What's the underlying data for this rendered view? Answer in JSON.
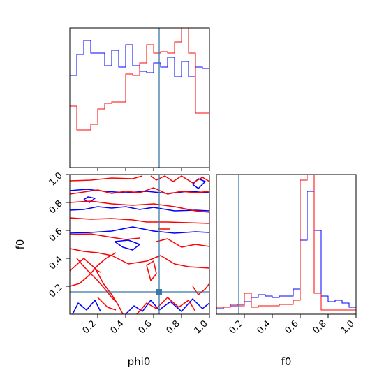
{
  "chart_data": {
    "type": "corner",
    "colors": {
      "series_a": "#0000ff",
      "series_b": "#ff0000",
      "truth": "#3a78a9",
      "axes": "#000000"
    },
    "truths": {
      "phi0": 0.64,
      "f0": 0.16
    },
    "ticks": {
      "phi0": {
        "values": [
          0.2,
          0.4,
          0.6,
          0.8,
          1.0
        ],
        "labels": [
          "0.2",
          "0.4",
          "0.6",
          "0.8",
          "1.0"
        ]
      },
      "f0": {
        "values": [
          0.2,
          0.4,
          0.6,
          0.8,
          1.0
        ],
        "labels": [
          "0.2",
          "0.4",
          "0.6",
          "0.8",
          "1.0"
        ]
      }
    },
    "axis_labels": {
      "x_left": "phi0",
      "x_right": "f0",
      "y_left": "f0"
    },
    "ranges": {
      "phi0": [
        0,
        1
      ],
      "f0": [
        0,
        1
      ]
    },
    "hist_phi0": {
      "bin_edges": [
        0,
        0.05,
        0.1,
        0.15,
        0.2,
        0.25,
        0.3,
        0.35,
        0.4,
        0.45,
        0.5,
        0.55,
        0.6,
        0.65,
        0.7,
        0.75,
        0.8,
        0.85,
        0.9,
        0.95,
        1.0
      ],
      "series": [
        {
          "color": "blue",
          "values": [
            0.66,
            0.81,
            0.91,
            0.82,
            0.82,
            0.73,
            0.84,
            0.72,
            0.88,
            0.73,
            0.69,
            0.68,
            0.75,
            0.72,
            0.79,
            0.65,
            0.76,
            0.65,
            0.72,
            0.71
          ]
        },
        {
          "color": "red",
          "values": [
            0.44,
            0.27,
            0.27,
            0.31,
            0.42,
            0.46,
            0.47,
            0.47,
            0.67,
            0.66,
            0.75,
            0.88,
            0.82,
            0.83,
            0.82,
            0.9,
            1.02,
            0.82,
            0.39,
            0.39
          ]
        }
      ]
    },
    "hist_f0": {
      "bin_edges": [
        0,
        0.05,
        0.1,
        0.15,
        0.2,
        0.25,
        0.3,
        0.35,
        0.4,
        0.45,
        0.5,
        0.55,
        0.6,
        0.65,
        0.7,
        0.75,
        0.8,
        0.85,
        0.9,
        0.95,
        1.0
      ],
      "series": [
        {
          "color": "blue",
          "values": [
            0.04,
            0.05,
            0.06,
            0.07,
            0.09,
            0.12,
            0.14,
            0.13,
            0.12,
            0.13,
            0.13,
            0.18,
            0.53,
            0.88,
            0.6,
            0.13,
            0.09,
            0.1,
            0.08,
            0.05
          ]
        },
        {
          "color": "red",
          "values": [
            0.05,
            0.05,
            0.07,
            0.06,
            0.15,
            0.05,
            0.06,
            0.06,
            0.06,
            0.07,
            0.07,
            0.1,
            0.96,
            1.05,
            0.15,
            0.03,
            0.03,
            0.03,
            0.03,
            0.03
          ]
        }
      ]
    },
    "contours": {
      "blue": [
        [
          [
            0.0,
            0.885
          ],
          [
            0.12,
            0.895
          ],
          [
            0.25,
            0.88
          ],
          [
            0.4,
            0.87
          ],
          [
            0.55,
            0.88
          ],
          [
            0.7,
            0.865
          ],
          [
            0.85,
            0.88
          ],
          [
            1.0,
            0.87
          ]
        ],
        [
          [
            0.0,
            0.745
          ],
          [
            0.1,
            0.75
          ],
          [
            0.2,
            0.77
          ],
          [
            0.3,
            0.76
          ],
          [
            0.4,
            0.77
          ],
          [
            0.5,
            0.75
          ],
          [
            0.6,
            0.765
          ],
          [
            0.75,
            0.74
          ],
          [
            0.9,
            0.745
          ],
          [
            1.0,
            0.74
          ]
        ],
        [
          [
            0.0,
            0.58
          ],
          [
            0.15,
            0.585
          ],
          [
            0.3,
            0.595
          ],
          [
            0.45,
            0.625
          ],
          [
            0.6,
            0.595
          ],
          [
            0.75,
            0.58
          ],
          [
            0.9,
            0.59
          ],
          [
            1.0,
            0.585
          ]
        ],
        [
          [
            0.32,
            0.52
          ],
          [
            0.38,
            0.48
          ],
          [
            0.45,
            0.46
          ],
          [
            0.5,
            0.5
          ],
          [
            0.42,
            0.53
          ],
          [
            0.32,
            0.52
          ]
        ],
        [
          [
            0.02,
            0.0
          ],
          [
            0.06,
            0.08
          ],
          [
            0.12,
            0.03
          ],
          [
            0.18,
            0.1
          ],
          [
            0.22,
            0.02
          ]
        ],
        [
          [
            0.4,
            0.0
          ],
          [
            0.46,
            0.06
          ],
          [
            0.52,
            0.02
          ],
          [
            0.58,
            0.1
          ],
          [
            0.64,
            0.03
          ],
          [
            0.72,
            0.09
          ],
          [
            0.8,
            0.02
          ],
          [
            0.88,
            0.11
          ],
          [
            0.95,
            0.04
          ],
          [
            1.0,
            0.08
          ]
        ],
        [
          [
            0.1,
            0.82
          ],
          [
            0.14,
            0.8
          ],
          [
            0.18,
            0.83
          ],
          [
            0.13,
            0.84
          ],
          [
            0.1,
            0.82
          ]
        ],
        [
          [
            0.88,
            0.93
          ],
          [
            0.92,
            0.9
          ],
          [
            0.97,
            0.95
          ],
          [
            0.92,
            0.97
          ],
          [
            0.88,
            0.93
          ]
        ]
      ],
      "red": [
        [
          [
            0.0,
            0.955
          ],
          [
            0.15,
            0.96
          ],
          [
            0.3,
            0.975
          ],
          [
            0.45,
            0.97
          ],
          [
            0.52,
            0.99
          ]
        ],
        [
          [
            0.58,
            0.99
          ],
          [
            0.62,
            0.96
          ],
          [
            0.68,
            0.99
          ],
          [
            0.74,
            0.95
          ],
          [
            0.8,
            0.99
          ],
          [
            0.88,
            0.94
          ],
          [
            0.95,
            0.98
          ],
          [
            1.0,
            0.95
          ]
        ],
        [
          [
            0.0,
            0.86
          ],
          [
            0.1,
            0.875
          ],
          [
            0.2,
            0.89
          ],
          [
            0.3,
            0.865
          ],
          [
            0.4,
            0.88
          ],
          [
            0.5,
            0.87
          ],
          [
            0.6,
            0.905
          ],
          [
            0.7,
            0.86
          ],
          [
            0.8,
            0.88
          ],
          [
            0.9,
            0.87
          ],
          [
            1.0,
            0.88
          ]
        ],
        [
          [
            0.0,
            0.8
          ],
          [
            0.15,
            0.81
          ],
          [
            0.3,
            0.79
          ],
          [
            0.45,
            0.78
          ],
          [
            0.6,
            0.79
          ],
          [
            0.75,
            0.77
          ],
          [
            0.9,
            0.74
          ],
          [
            1.0,
            0.73
          ]
        ],
        [
          [
            0.0,
            0.69
          ],
          [
            0.15,
            0.68
          ],
          [
            0.3,
            0.685
          ],
          [
            0.45,
            0.675
          ],
          [
            0.55,
            0.66
          ],
          [
            0.7,
            0.66
          ],
          [
            0.85,
            0.655
          ],
          [
            1.0,
            0.65
          ]
        ],
        [
          [
            0.0,
            0.57
          ],
          [
            0.15,
            0.575
          ],
          [
            0.3,
            0.55
          ],
          [
            0.4,
            0.535
          ],
          [
            0.5,
            0.545
          ]
        ],
        [
          [
            0.62,
            0.52
          ],
          [
            0.7,
            0.54
          ],
          [
            0.8,
            0.48
          ],
          [
            0.9,
            0.5
          ],
          [
            1.0,
            0.485
          ]
        ],
        [
          [
            0.0,
            0.47
          ],
          [
            0.1,
            0.45
          ],
          [
            0.2,
            0.44
          ],
          [
            0.3,
            0.42
          ],
          [
            0.42,
            0.36
          ],
          [
            0.55,
            0.38
          ],
          [
            0.65,
            0.42
          ],
          [
            0.75,
            0.36
          ],
          [
            0.85,
            0.34
          ],
          [
            1.0,
            0.33
          ]
        ],
        [
          [
            0.0,
            0.31
          ],
          [
            0.1,
            0.4
          ],
          [
            0.18,
            0.33
          ],
          [
            0.24,
            0.22
          ],
          [
            0.3,
            0.14
          ],
          [
            0.35,
            0.06
          ],
          [
            0.38,
            0.0
          ]
        ],
        [
          [
            0.05,
            0.4
          ],
          [
            0.12,
            0.32
          ],
          [
            0.2,
            0.24
          ],
          [
            0.26,
            0.17
          ],
          [
            0.3,
            0.12
          ],
          [
            0.34,
            0.08
          ]
        ],
        [
          [
            0.0,
            0.2
          ],
          [
            0.07,
            0.22
          ],
          [
            0.14,
            0.28
          ],
          [
            0.2,
            0.35
          ],
          [
            0.26,
            0.4
          ],
          [
            0.33,
            0.44
          ]
        ],
        [
          [
            0.55,
            0.35
          ],
          [
            0.6,
            0.38
          ],
          [
            0.62,
            0.29
          ],
          [
            0.58,
            0.24
          ],
          [
            0.55,
            0.35
          ]
        ],
        [
          [
            0.88,
            0.2
          ],
          [
            0.92,
            0.14
          ],
          [
            0.97,
            0.18
          ],
          [
            1.0,
            0.22
          ]
        ],
        [
          [
            0.48,
            0.0
          ],
          [
            0.55,
            0.08
          ],
          [
            0.62,
            0.04
          ],
          [
            0.7,
            0.12
          ],
          [
            0.78,
            0.05
          ],
          [
            0.85,
            0.1
          ],
          [
            0.9,
            0.02
          ]
        ],
        [
          [
            0.2,
            0.12
          ],
          [
            0.27,
            0.05
          ],
          [
            0.33,
            0.03
          ]
        ],
        [
          [
            0.63,
            0.61
          ],
          [
            0.72,
            0.61
          ]
        ],
        [
          [
            0.18,
            0.32
          ],
          [
            0.22,
            0.3
          ]
        ]
      ]
    }
  }
}
